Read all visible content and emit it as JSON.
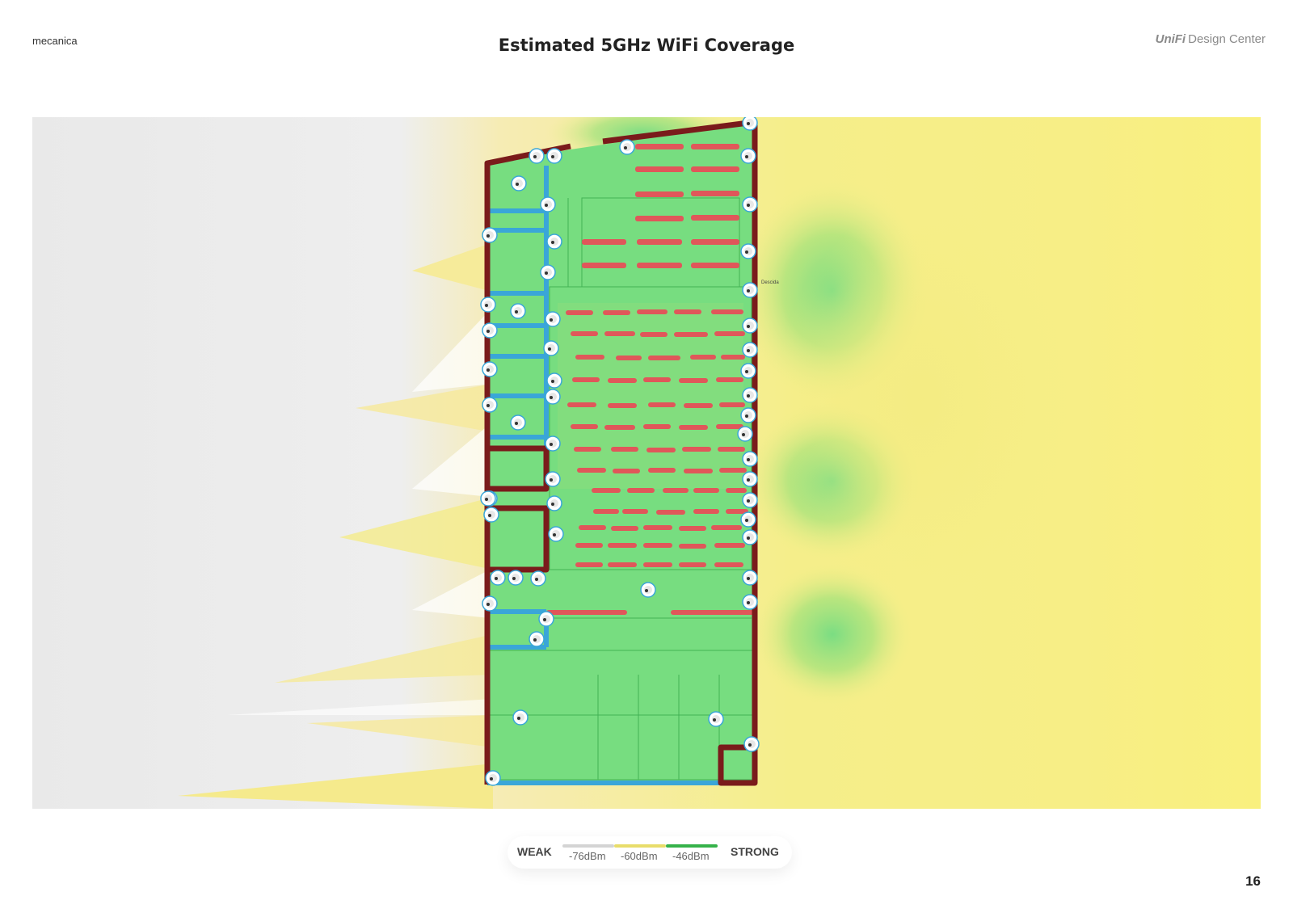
{
  "header": {
    "project_name": "mecanica",
    "title": "Estimated 5GHz WiFi Coverage",
    "brand_logo": "UniFi",
    "brand_text": "Design Center"
  },
  "legend": {
    "weak_label": "WEAK",
    "strong_label": "STRONG",
    "levels": [
      "-76dBm",
      "-60dBm",
      "-46dBm"
    ]
  },
  "floorplan": {
    "room_label": "Descida"
  },
  "footer": {
    "page_number": "16"
  },
  "colors": {
    "weak": "#d4d4d4",
    "medium": "#f3e97a",
    "strong": "#6fdc7c",
    "exterior_wall": "#7a1b1b",
    "interior_wall": "#3aa6d8",
    "obstacle": "#e0575a"
  },
  "icons": [
    "access-point-icon"
  ]
}
